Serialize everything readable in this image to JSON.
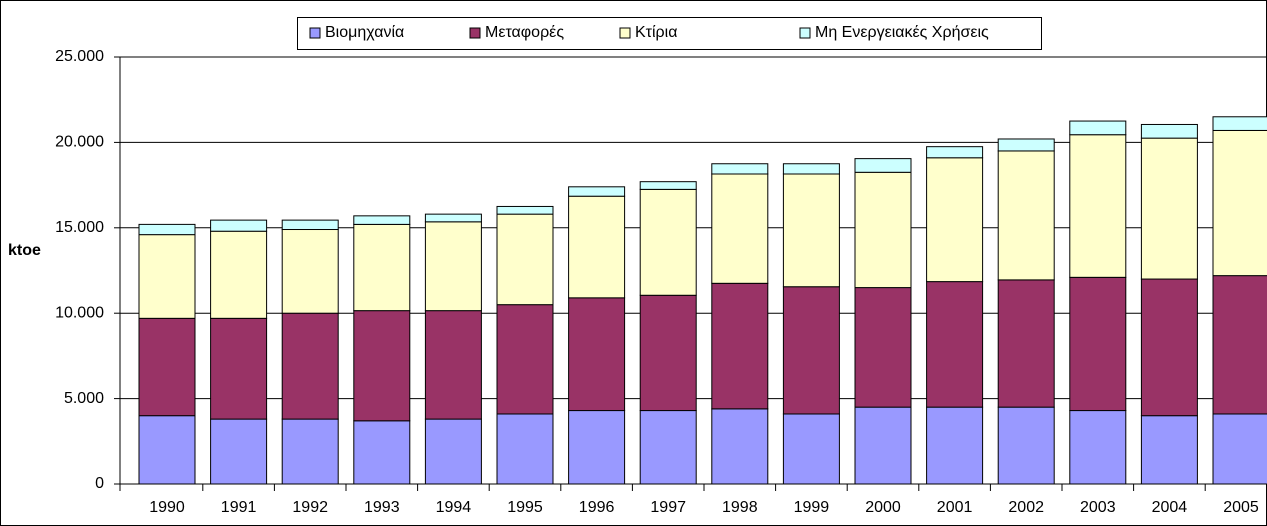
{
  "chart_data": {
    "type": "stacked_bar",
    "y_label": "ktoe",
    "categories": [
      "1990",
      "1991",
      "1992",
      "1993",
      "1994",
      "1995",
      "1996",
      "1997",
      "1998",
      "1999",
      "2000",
      "2001",
      "2002",
      "2003",
      "2004",
      "2005"
    ],
    "series": [
      {
        "name": "Βιομηχανία",
        "color": "#9999ff",
        "values": [
          4000,
          3800,
          3800,
          3700,
          3800,
          4100,
          4300,
          4300,
          4400,
          4100,
          4500,
          4500,
          4500,
          4300,
          4000,
          4100
        ]
      },
      {
        "name": "Μεταφορές",
        "color": "#993366",
        "values": [
          5700,
          5900,
          6200,
          6450,
          6350,
          6400,
          6600,
          6750,
          7350,
          7450,
          7000,
          7350,
          7450,
          7800,
          8000,
          8100
        ]
      },
      {
        "name": "Κτίρια",
        "color": "#ffffcc",
        "values": [
          4900,
          5100,
          4900,
          5050,
          5200,
          5300,
          5950,
          6200,
          6400,
          6600,
          6750,
          7250,
          7550,
          8350,
          8250,
          8500
        ]
      },
      {
        "name": "Μη Ενεργειακές Χρήσεις",
        "color": "#ccffff",
        "values": [
          600,
          650,
          550,
          500,
          450,
          450,
          550,
          450,
          600,
          600,
          800,
          650,
          700,
          800,
          800,
          800
        ]
      }
    ],
    "ylim": [
      0,
      25000
    ],
    "yticks": [
      0,
      {
        "value": 5000,
        "label": "5.000"
      },
      {
        "value": 10000,
        "label": "10.000"
      },
      {
        "value": 15000,
        "label": "15.000"
      },
      {
        "value": 20000,
        "label": "20.000"
      },
      {
        "value": 25000,
        "label": "25.000"
      }
    ],
    "grid": true,
    "legend": "top"
  }
}
